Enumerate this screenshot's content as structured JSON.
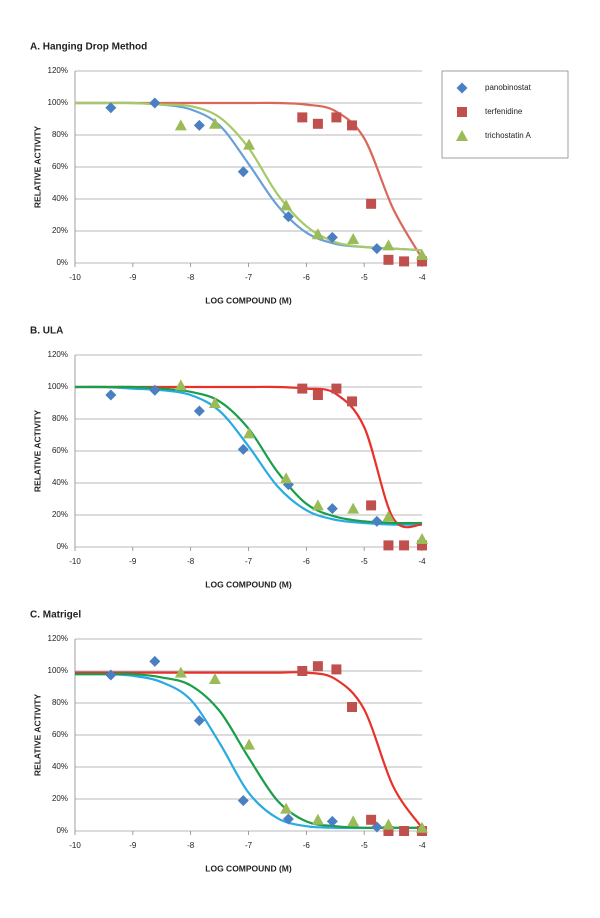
{
  "chart_data": [
    {
      "type": "scatter",
      "title": "A. Hanging Drop Method",
      "xlabel": "LOG COMPOUND (M)",
      "ylabel": "RELATIVE ACTIVITY",
      "xlim": [
        -10,
        -4
      ],
      "xticks": [
        -10,
        -9,
        -8,
        -7,
        -6,
        -5,
        -4
      ],
      "ylim": [
        0,
        120
      ],
      "yticks": [
        {
          "value": 0,
          "label": "0%"
        },
        {
          "value": 20,
          "label": "20%"
        },
        {
          "value": 40,
          "label": "40%"
        },
        {
          "value": 60,
          "label": "60%"
        },
        {
          "value": 80,
          "label": "80%"
        },
        {
          "value": 100,
          "label": "100%"
        },
        {
          "value": 120,
          "label": "120%"
        }
      ],
      "grid": true,
      "legend": "right",
      "series": [
        {
          "name": "panobinostat",
          "color": "#4a7fc1",
          "marker": "diamond",
          "x": [
            -9.38,
            -8.62,
            -7.85,
            -7.09,
            -6.31,
            -5.55,
            -4.78
          ],
          "values": [
            97,
            100,
            86,
            57,
            29,
            16,
            9
          ],
          "curve": {
            "color": "#6aa0d8",
            "x": [
              -10,
              -9.5,
              -9,
              -8.5,
              -8,
              -7.5,
              -7,
              -6.5,
              -6,
              -5.5,
              -5,
              -4.5,
              -4
            ],
            "values": [
              100,
              100,
              100,
              99,
              96,
              86,
              62,
              36,
              19,
              12,
              10,
              9,
              8
            ]
          }
        },
        {
          "name": "terfenidine",
          "color": "#c0504d",
          "marker": "square",
          "x": [
            -6.07,
            -5.8,
            -5.48,
            -5.21,
            -4.88,
            -4.58,
            -4.31,
            -4
          ],
          "values": [
            91,
            87,
            91,
            86,
            37,
            2,
            1,
            1
          ],
          "curve": {
            "color": "#d9685a",
            "x": [
              -10,
              -9.5,
              -9,
              -8.5,
              -8,
              -7.5,
              -7,
              -6.5,
              -6,
              -5.5,
              -5,
              -4.5,
              -4
            ],
            "values": [
              100,
              100,
              100,
              100,
              100,
              100,
              100,
              100,
              99,
              95,
              78,
              34,
              3
            ]
          }
        },
        {
          "name": "trichostatin A",
          "color": "#9bbb59",
          "marker": "triangle",
          "x": [
            -8.17,
            -7.58,
            -6.99,
            -6.35,
            -5.8,
            -5.19,
            -4.58,
            -4
          ],
          "values": [
            86,
            87,
            74,
            36,
            18,
            15,
            11,
            5
          ],
          "curve": {
            "color": "#a6c96a",
            "x": [
              -10,
              -9.5,
              -9,
              -8.5,
              -8,
              -7.5,
              -7,
              -6.5,
              -6,
              -5.5,
              -5,
              -4.5,
              -4
            ],
            "values": [
              100,
              100,
              100,
              99,
              98,
              91,
              72,
              43,
              23,
              13,
              10,
              9,
              8
            ]
          }
        }
      ]
    },
    {
      "type": "scatter",
      "title": "B. ULA",
      "xlabel": "LOG COMPOUND (M)",
      "ylabel": "RELATIVE ACTIVITY",
      "xlim": [
        -10,
        -4
      ],
      "xticks": [
        -10,
        -9,
        -8,
        -7,
        -6,
        -5,
        -4
      ],
      "ylim": [
        0,
        120
      ],
      "yticks": [
        {
          "value": 0,
          "label": "0%"
        },
        {
          "value": 20,
          "label": "20%"
        },
        {
          "value": 40,
          "label": "40%"
        },
        {
          "value": 60,
          "label": "60%"
        },
        {
          "value": 80,
          "label": "80%"
        },
        {
          "value": 100,
          "label": "100%"
        },
        {
          "value": 120,
          "label": "120%"
        }
      ],
      "grid": true,
      "series": [
        {
          "name": "panobinostat",
          "color": "#4a7fc1",
          "marker": "diamond",
          "x": [
            -9.38,
            -8.62,
            -7.85,
            -7.09,
            -6.31,
            -5.55,
            -4.78
          ],
          "values": [
            95,
            98,
            85,
            61,
            39,
            24,
            16
          ],
          "curve": {
            "color": "#29abe2",
            "x": [
              -10,
              -9.5,
              -9,
              -8.5,
              -8,
              -7.5,
              -7,
              -6.5,
              -6,
              -5.5,
              -5,
              -4.5,
              -4
            ],
            "values": [
              100,
              100,
              99,
              98,
              95,
              85,
              63,
              38,
              23,
              17,
              15,
              14,
              14
            ]
          }
        },
        {
          "name": "terfenidine",
          "color": "#c0504d",
          "marker": "square",
          "x": [
            -6.07,
            -5.8,
            -5.48,
            -5.21,
            -4.88,
            -4.58,
            -4.31,
            -4
          ],
          "values": [
            99,
            95,
            99,
            91,
            26,
            1,
            1,
            1
          ],
          "curve": {
            "color": "#e8312a",
            "x": [
              -10,
              -9.5,
              -9,
              -8.5,
              -8,
              -7.5,
              -7,
              -6.5,
              -6,
              -5.5,
              -5,
              -4.5,
              -4
            ],
            "values": [
              100,
              100,
              100,
              100,
              100,
              100,
              100,
              100,
              99,
              96,
              75,
              18,
              14
            ]
          }
        },
        {
          "name": "trichostatin A",
          "color": "#9bbb59",
          "marker": "triangle",
          "x": [
            -8.17,
            -7.58,
            -6.99,
            -6.35,
            -5.8,
            -5.19,
            -4.58,
            -4
          ],
          "values": [
            101,
            90,
            71,
            43,
            26,
            24,
            19,
            5
          ],
          "curve": {
            "color": "#1a9e4a",
            "x": [
              -10,
              -9.5,
              -9,
              -8.5,
              -8,
              -7.5,
              -7,
              -6.5,
              -6,
              -5.5,
              -5,
              -4.5,
              -4
            ],
            "values": [
              100,
              100,
              100,
              99,
              97,
              91,
              74,
              47,
              27,
              19,
              16,
              15,
              15
            ]
          }
        }
      ]
    },
    {
      "type": "scatter",
      "title": "C. Matrigel",
      "xlabel": "LOG COMPOUND (M)",
      "ylabel": "RELATIVE ACTIVITY",
      "xlim": [
        -10,
        -4
      ],
      "xticks": [
        -10,
        -9,
        -8,
        -7,
        -6,
        -5,
        -4
      ],
      "ylim": [
        0,
        120
      ],
      "yticks": [
        {
          "value": 0,
          "label": "0%"
        },
        {
          "value": 20,
          "label": "20%"
        },
        {
          "value": 40,
          "label": "40%"
        },
        {
          "value": 60,
          "label": "60%"
        },
        {
          "value": 80,
          "label": "80%"
        },
        {
          "value": 100,
          "label": "100%"
        },
        {
          "value": 120,
          "label": "120%"
        }
      ],
      "grid": true,
      "series": [
        {
          "name": "panobinostat",
          "color": "#4a7fc1",
          "marker": "diamond",
          "x": [
            -9.38,
            -8.62,
            -7.85,
            -7.09,
            -6.31,
            -5.55,
            -4.78
          ],
          "values": [
            97.5,
            106,
            69,
            19,
            7.5,
            6,
            2.5
          ],
          "curve": {
            "color": "#29abe2",
            "x": [
              -10,
              -9.5,
              -9,
              -8.5,
              -8,
              -7.5,
              -7,
              -6.5,
              -6,
              -5.5,
              -5,
              -4.5,
              -4
            ],
            "values": [
              98,
              98,
              97,
              93,
              82,
              55,
              24,
              8,
              3,
              2,
              2,
              2,
              2
            ]
          }
        },
        {
          "name": "terfenidine",
          "color": "#c0504d",
          "marker": "square",
          "x": [
            -6.07,
            -5.8,
            -5.48,
            -5.21,
            -4.88,
            -4.58,
            -4.31,
            -4
          ],
          "values": [
            100,
            103,
            101,
            77.5,
            7,
            0,
            0,
            0
          ],
          "curve": {
            "color": "#e8312a",
            "x": [
              -10,
              -9.5,
              -9,
              -8.5,
              -8,
              -7.5,
              -7,
              -6.5,
              -6,
              -5.5,
              -5,
              -4.5,
              -4
            ],
            "values": [
              99,
              99,
              99,
              99,
              99,
              99,
              99,
              99,
              99,
              95,
              76,
              28,
              2
            ]
          }
        },
        {
          "name": "trichostatin A",
          "color": "#9bbb59",
          "marker": "triangle",
          "x": [
            -8.17,
            -7.58,
            -6.99,
            -6.35,
            -5.8,
            -5.19,
            -4.58,
            -4
          ],
          "values": [
            99,
            95,
            54,
            14,
            7,
            6,
            4,
            2
          ],
          "curve": {
            "color": "#1a9e4a",
            "x": [
              -10,
              -9.5,
              -9,
              -8.5,
              -8,
              -7.5,
              -7,
              -6.5,
              -6,
              -5.5,
              -5,
              -4.5,
              -4
            ],
            "values": [
              98,
              98,
              98,
              96,
              91,
              75,
              46,
              19,
              6,
              3,
              2,
              2,
              2
            ]
          }
        }
      ]
    }
  ]
}
